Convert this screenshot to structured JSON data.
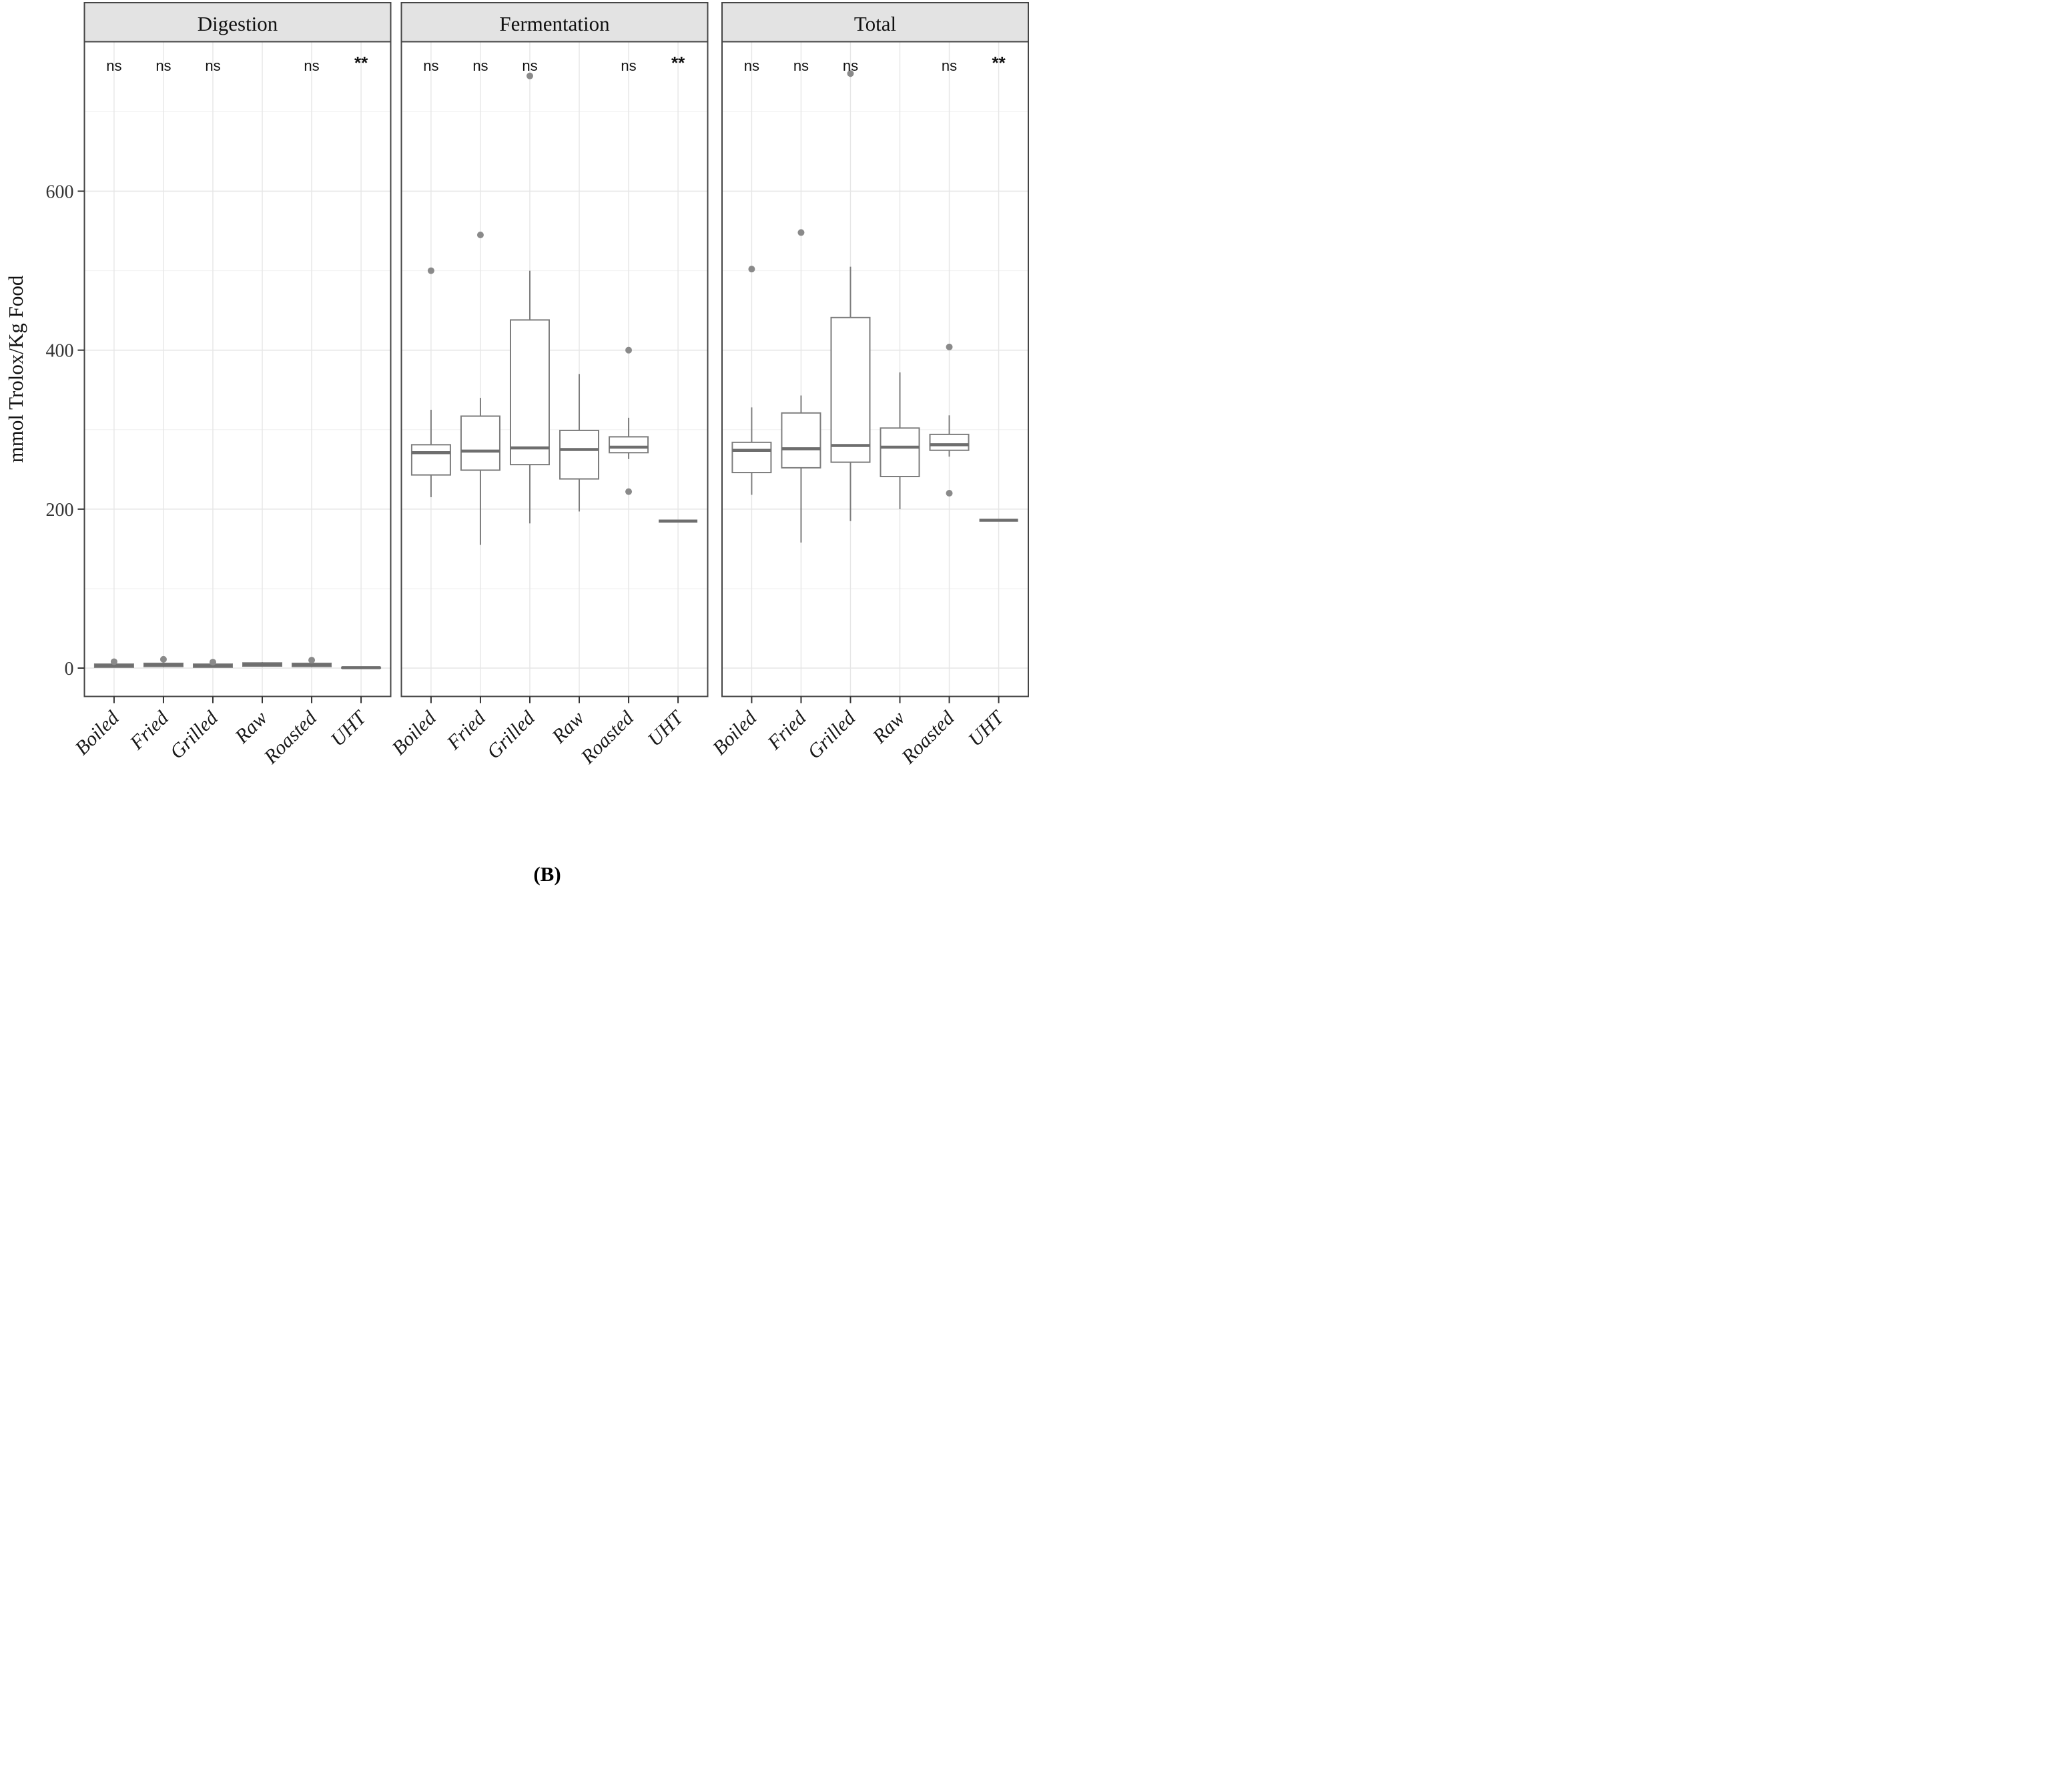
{
  "figure": {
    "caption": "(B)"
  },
  "palette": {
    "strip_bg": "#e3e3e3",
    "panel_bg": "#ffffff",
    "panel_border": "#454545",
    "grid_major": "#e6e6e6",
    "grid_minor": "#f2f2f2",
    "box_stroke": "#7d7d7d",
    "median_stroke": "#6e6e6e",
    "outlier_fill": "#8a8a8a",
    "tick_color": "#333333",
    "text_color": "#1a1a1a",
    "annotation_color": "#111111"
  },
  "chart_data": {
    "type": "boxplot",
    "ylabel": "mmol Trolox/Kg Food",
    "categories": [
      "Boiled",
      "Fried",
      "Grilled",
      "Raw",
      "Roasted",
      "UHT"
    ],
    "y_ticks": [
      0,
      200,
      400,
      600
    ],
    "y_minor_ticks": [
      100,
      300,
      500,
      700
    ],
    "y_range": [
      -36,
      788
    ],
    "legend": "none",
    "grid": "on",
    "facets": [
      {
        "title": "Digestion",
        "significance": [
          "ns",
          "ns",
          "ns",
          null,
          "ns",
          "**"
        ],
        "boxes": [
          {
            "category": "Boiled",
            "whisker_low": 0.5,
            "q1": 1,
            "median": 3,
            "q3": 5,
            "whisker_high": 6,
            "outliers": [
              8
            ]
          },
          {
            "category": "Fried",
            "whisker_low": 1,
            "q1": 2,
            "median": 4,
            "q3": 6,
            "whisker_high": 7,
            "outliers": [
              11
            ]
          },
          {
            "category": "Grilled",
            "whisker_low": 0.5,
            "q1": 1,
            "median": 3,
            "q3": 5,
            "whisker_high": 5.5,
            "outliers": [
              7.5
            ]
          },
          {
            "category": "Raw",
            "whisker_low": 1.5,
            "q1": 2.5,
            "median": 4.5,
            "q3": 6.5,
            "whisker_high": 7.5,
            "outliers": []
          },
          {
            "category": "Roasted",
            "whisker_low": 1,
            "q1": 2,
            "median": 4,
            "q3": 6,
            "whisker_high": 7,
            "outliers": [
              10
            ]
          },
          {
            "category": "UHT",
            "whisker_low": 0,
            "q1": 0,
            "median": 0.5,
            "q3": 1,
            "whisker_high": 1,
            "outliers": []
          }
        ]
      },
      {
        "title": "Fermentation",
        "significance": [
          "ns",
          "ns",
          "ns",
          null,
          "ns",
          "**"
        ],
        "boxes": [
          {
            "category": "Boiled",
            "whisker_low": 215,
            "q1": 243,
            "median": 271,
            "q3": 281,
            "whisker_high": 325,
            "outliers": [
              500
            ]
          },
          {
            "category": "Fried",
            "whisker_low": 155,
            "q1": 249,
            "median": 273,
            "q3": 317,
            "whisker_high": 340,
            "outliers": [
              545
            ]
          },
          {
            "category": "Grilled",
            "whisker_low": 182,
            "q1": 256,
            "median": 277,
            "q3": 438,
            "whisker_high": 500,
            "outliers": [
              745
            ]
          },
          {
            "category": "Raw",
            "whisker_low": 197,
            "q1": 238,
            "median": 275,
            "q3": 299,
            "whisker_high": 370,
            "outliers": []
          },
          {
            "category": "Roasted",
            "whisker_low": 263,
            "q1": 271,
            "median": 278,
            "q3": 291,
            "whisker_high": 315,
            "outliers": [
              400,
              222
            ]
          },
          {
            "category": "UHT",
            "whisker_low": 185,
            "q1": 185,
            "median": 185,
            "q3": 185,
            "whisker_high": 185,
            "outliers": []
          }
        ]
      },
      {
        "title": "Total",
        "significance": [
          "ns",
          "ns",
          "ns",
          null,
          "ns",
          "**"
        ],
        "boxes": [
          {
            "category": "Boiled",
            "whisker_low": 218,
            "q1": 246,
            "median": 274,
            "q3": 284,
            "whisker_high": 328,
            "outliers": [
              502
            ]
          },
          {
            "category": "Fried",
            "whisker_low": 158,
            "q1": 252,
            "median": 276,
            "q3": 321,
            "whisker_high": 343,
            "outliers": [
              548
            ]
          },
          {
            "category": "Grilled",
            "whisker_low": 185,
            "q1": 259,
            "median": 280,
            "q3": 441,
            "whisker_high": 505,
            "outliers": [
              748
            ]
          },
          {
            "category": "Raw",
            "whisker_low": 200,
            "q1": 241,
            "median": 278,
            "q3": 302,
            "whisker_high": 372,
            "outliers": []
          },
          {
            "category": "Roasted",
            "whisker_low": 266,
            "q1": 274,
            "median": 281,
            "q3": 294,
            "whisker_high": 318,
            "outliers": [
              404,
              220
            ]
          },
          {
            "category": "UHT",
            "whisker_low": 186,
            "q1": 186,
            "median": 186,
            "q3": 186,
            "whisker_high": 186,
            "outliers": []
          }
        ]
      }
    ]
  }
}
